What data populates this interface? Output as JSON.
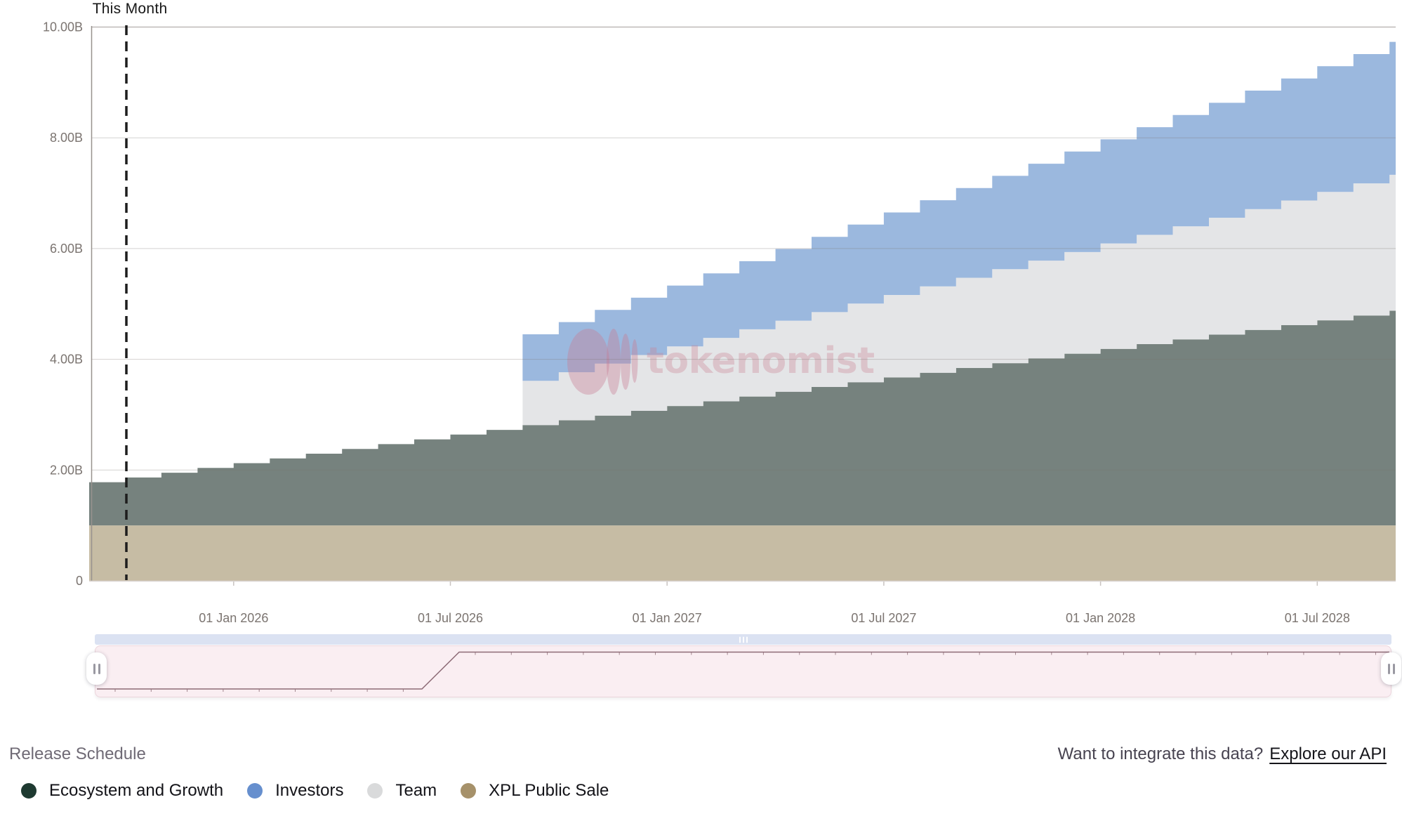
{
  "watermark": {
    "text": "tokenomist"
  },
  "footer": {
    "section_title": "Release Schedule",
    "api_prompt": "Want to integrate this data?",
    "api_link": "Explore our API"
  },
  "legend": {
    "items": [
      {
        "label": "Ecosystem and Growth",
        "color": "#1e3a31"
      },
      {
        "label": "Investors",
        "color": "#668fce"
      },
      {
        "label": "Team",
        "color": "#d9dadb"
      },
      {
        "label": "XPL Public Sale",
        "color": "#a6916a"
      }
    ]
  },
  "chart_data": {
    "type": "area",
    "variant": "stacked-step",
    "title": "Release Schedule",
    "unit": "B tokens",
    "ylim": [
      0,
      10
    ],
    "grid": true,
    "legend_position": "bottom",
    "annotation": {
      "label": "This Month",
      "month_index": 1
    },
    "x_months": [
      "Sep 2025",
      "Oct 2025",
      "Nov 2025",
      "Dec 2025",
      "Jan 2026",
      "Feb 2026",
      "Mar 2026",
      "Apr 2026",
      "May 2026",
      "Jun 2026",
      "Jul 2026",
      "Aug 2026",
      "Sep 2026",
      "Oct 2026",
      "Nov 2026",
      "Dec 2026",
      "Jan 2027",
      "Feb 2027",
      "Mar 2027",
      "Apr 2027",
      "May 2027",
      "Jun 2027",
      "Jul 2027",
      "Aug 2027",
      "Sep 2027",
      "Oct 2027",
      "Nov 2027",
      "Dec 2027",
      "Jan 2028",
      "Feb 2028",
      "Mar 2028",
      "Apr 2028",
      "May 2028",
      "Jun 2028",
      "Jul 2028",
      "Aug 2028",
      "Sep 2028"
    ],
    "yticks": [
      {
        "value": 0,
        "label": "0"
      },
      {
        "value": 2,
        "label": "2.00B"
      },
      {
        "value": 4,
        "label": "4.00B"
      },
      {
        "value": 6,
        "label": "6.00B"
      },
      {
        "value": 8,
        "label": "8.00B"
      },
      {
        "value": 10,
        "label": "10.00B"
      }
    ],
    "xticks": [
      {
        "month_index": 4,
        "label": "01 Jan 2026"
      },
      {
        "month_index": 10,
        "label": "01 Jul 2026"
      },
      {
        "month_index": 16,
        "label": "01 Jan 2027"
      },
      {
        "month_index": 22,
        "label": "01 Jul 2027"
      },
      {
        "month_index": 28,
        "label": "01 Jan 2028"
      },
      {
        "month_index": 34,
        "label": "01 Jul 2028"
      }
    ],
    "series": [
      {
        "name": "XPL Public Sale",
        "legend_color": "#a6916a",
        "area_color": "#c6bca4",
        "values": [
          1,
          1,
          1,
          1,
          1,
          1,
          1,
          1,
          1,
          1,
          1,
          1,
          1,
          1,
          1,
          1,
          1,
          1,
          1,
          1,
          1,
          1,
          1,
          1,
          1,
          1,
          1,
          1,
          1,
          1,
          1,
          1,
          1,
          1,
          1,
          1,
          1
        ]
      },
      {
        "name": "Ecosystem and Growth",
        "legend_color": "#1e3a31",
        "area_color": "#76827e",
        "values": [
          0.78,
          0.866,
          0.952,
          1.038,
          1.124,
          1.21,
          1.296,
          1.382,
          1.468,
          1.554,
          1.64,
          1.726,
          1.812,
          1.898,
          1.984,
          2.07,
          2.156,
          2.242,
          2.328,
          2.414,
          2.5,
          2.586,
          2.672,
          2.758,
          2.844,
          2.93,
          3.016,
          3.102,
          3.188,
          3.274,
          3.36,
          3.446,
          3.532,
          3.618,
          3.704,
          3.79,
          3.876
        ]
      },
      {
        "name": "Team",
        "legend_color": "#d9dadb",
        "area_color": "#e4e5e7",
        "values": [
          0,
          0,
          0,
          0,
          0,
          0,
          0,
          0,
          0,
          0,
          0,
          0,
          0.8,
          0.869,
          0.938,
          1.007,
          1.076,
          1.145,
          1.214,
          1.283,
          1.352,
          1.421,
          1.49,
          1.559,
          1.628,
          1.697,
          1.766,
          1.835,
          1.904,
          1.973,
          2.042,
          2.111,
          2.18,
          2.249,
          2.318,
          2.387,
          2.456
        ]
      },
      {
        "name": "Investors",
        "legend_color": "#668fce",
        "area_color": "#9bb8de",
        "values": [
          0,
          0,
          0,
          0,
          0,
          0,
          0,
          0,
          0,
          0,
          0,
          0,
          0.84,
          0.905,
          0.97,
          1.035,
          1.1,
          1.165,
          1.23,
          1.295,
          1.36,
          1.425,
          1.49,
          1.555,
          1.62,
          1.685,
          1.75,
          1.815,
          1.88,
          1.945,
          2.01,
          2.075,
          2.14,
          2.205,
          2.27,
          2.335,
          2.4
        ]
      }
    ]
  }
}
